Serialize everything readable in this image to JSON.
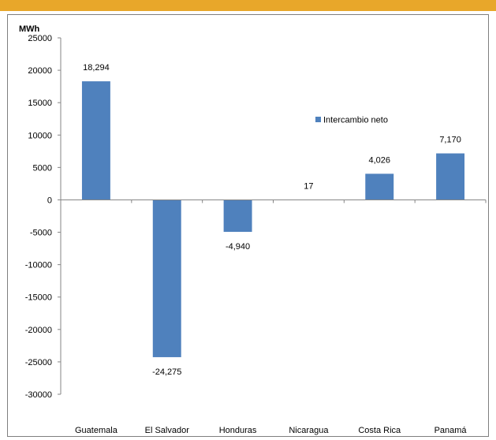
{
  "chart_data": {
    "type": "bar",
    "unit_label": "MWh",
    "categories": [
      "Guatemala",
      "El Salvador",
      "Honduras",
      "Nicaragua",
      "Costa Rica",
      "Panamá"
    ],
    "series": [
      {
        "name": "Intercambio neto",
        "values": [
          18294,
          -24275,
          -4940,
          17,
          4026,
          7170
        ],
        "color": "#4f81bd"
      }
    ],
    "data_labels": [
      "18,294",
      "-24,275",
      "-4,940",
      "17",
      "4,026",
      "7,170"
    ],
    "ylim": [
      -30000,
      25000
    ],
    "yticks": [
      "25000",
      "20000",
      "15000",
      "10000",
      "5000",
      "0",
      "-5000",
      "-10000",
      "-15000",
      "-20000",
      "-25000",
      "-30000"
    ],
    "grid": false,
    "legend_position": "right",
    "colors": {
      "bar": "#4f81bd",
      "header_band": "#e8a72a",
      "border": "#7f7f7f",
      "axis": "#868686"
    }
  }
}
